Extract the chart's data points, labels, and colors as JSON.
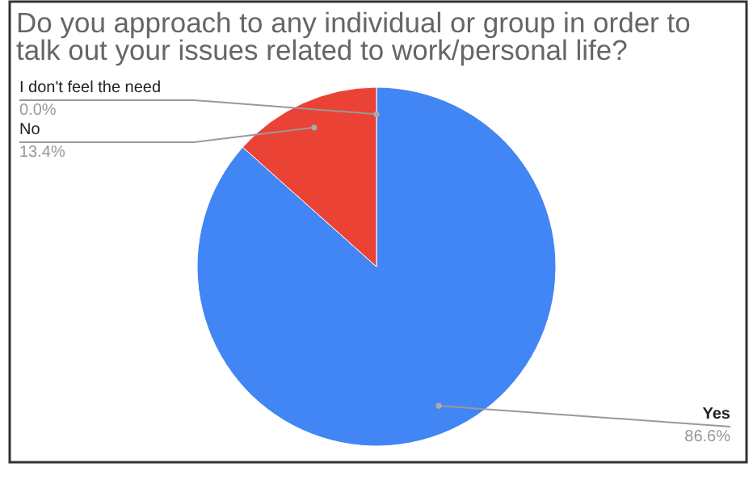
{
  "chart_data": {
    "type": "pie",
    "title": "Do you approach to any individual or group in order to talk out your issues related to work/personal life?",
    "categories": [
      "Yes",
      "No",
      "I don't feel the need"
    ],
    "values": [
      86.6,
      13.4,
      0.0
    ],
    "colors": [
      "#4285f4",
      "#ea4335",
      "#fbbc04"
    ],
    "value_labels": [
      "86.6%",
      "13.4%",
      "0.0%"
    ]
  }
}
